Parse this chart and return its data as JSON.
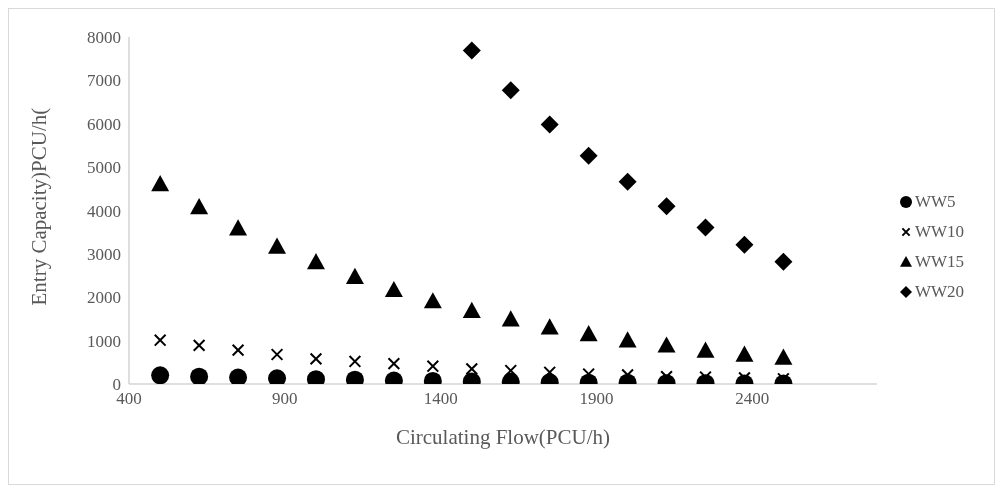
{
  "chart_data": {
    "type": "scatter",
    "xlabel": "Circulating Flow(PCU/h)",
    "ylabel": "Entry Capacity)PCU/h(",
    "x": [
      500,
      625,
      750,
      875,
      1000,
      1125,
      1250,
      1375,
      1500,
      1625,
      1750,
      1875,
      2000,
      2125,
      2250,
      2375,
      2500
    ],
    "series": [
      {
        "name": "WW5",
        "color": "#000000",
        "marker": "circle",
        "values": [
          200,
          170,
          150,
          130,
          110,
          100,
          80,
          70,
          60,
          50,
          40,
          30,
          30,
          20,
          20,
          10,
          10
        ]
      },
      {
        "name": "WW10",
        "color": "#000000",
        "marker": "cross",
        "values": [
          1010,
          890,
          780,
          680,
          580,
          520,
          470,
          410,
          350,
          310,
          270,
          230,
          210,
          170,
          160,
          140,
          120
        ]
      },
      {
        "name": "WW15",
        "color": "#000000",
        "marker": "triangle",
        "values": [
          4610,
          4080,
          3590,
          3170,
          2810,
          2470,
          2170,
          1910,
          1690,
          1490,
          1310,
          1150,
          1010,
          890,
          770,
          680,
          610
        ]
      },
      {
        "name": "WW20",
        "color": "#000000",
        "marker": "diamond",
        "x": [
          1500,
          1625,
          1750,
          1875,
          2000,
          2125,
          2250,
          2375,
          2500
        ],
        "values": [
          7690,
          6770,
          5980,
          5260,
          4660,
          4100,
          3610,
          3210,
          2820
        ]
      }
    ],
    "xlim": [
      400,
      2800
    ],
    "xticks": [
      400,
      900,
      1400,
      1900,
      2400
    ],
    "ylim": [
      0,
      8000
    ],
    "yticks": [
      0,
      1000,
      2000,
      3000,
      4000,
      5000,
      6000,
      7000,
      8000
    ],
    "grid": false,
    "legend": "right"
  }
}
